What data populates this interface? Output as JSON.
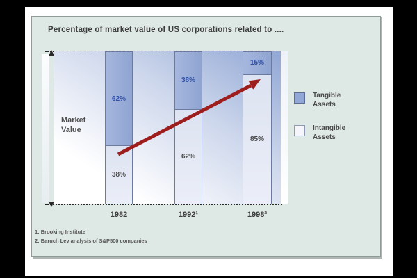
{
  "slide": {
    "title": "Percentage of market value of US corporations related to ....",
    "market_label": "Market\nValue",
    "footnotes": [
      "1: Brooking Institute",
      "2: Baruch Lev analysis of S&P500 companies"
    ]
  },
  "chart_data": {
    "type": "bar",
    "stacked": true,
    "title": "Percentage of market value of US corporations related to ....",
    "categories": [
      "1982",
      "1992¹",
      "1998²"
    ],
    "series": [
      {
        "name": "Tangible Assets",
        "values": [
          62,
          38,
          15
        ],
        "labels": [
          "62%",
          "38%",
          "15%"
        ],
        "color": "#92a7d5"
      },
      {
        "name": "Intangible Assets",
        "values": [
          38,
          62,
          85
        ],
        "labels": [
          "38%",
          "62%",
          "85%"
        ],
        "color": "#e6eaf6"
      }
    ],
    "ylabel": "Market Value",
    "ylim": [
      0,
      100
    ],
    "grid": false,
    "legend_position": "right",
    "annotations": [
      "red trend arrow rising from the 1982 tangible/intangible boundary to the 1998 boundary"
    ]
  },
  "legend": {
    "items": [
      {
        "label": "Tangible\nAssets",
        "color": "#92a7d5"
      },
      {
        "label": "Intangible\nAssets",
        "color": "#f4f6fb"
      }
    ]
  },
  "colors": {
    "slide_background": "#dee8e4",
    "tangible": "#92a7d5",
    "intangible": "#e6eaf6",
    "tangible_label": "#2f50a6",
    "trend_arrow": "#9e1e1e",
    "axis": "#2a2a2a"
  }
}
